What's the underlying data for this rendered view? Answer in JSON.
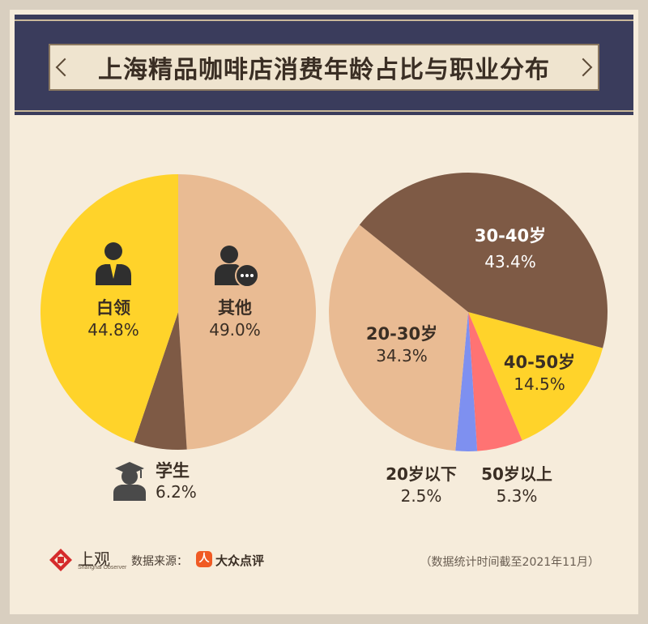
{
  "title": "上海精品咖啡店消费年龄占比与职业分布",
  "footer": {
    "brand": "上观",
    "brand_sub": "Shanghai Observer",
    "source_label": "数据来源：",
    "source_name": "大众点评",
    "source_icon": "人",
    "note": "（数据统计时间截至2021年11月）"
  },
  "colors": {
    "yellow": "#ffd32a",
    "peach": "#e9bb93",
    "brown": "#7e5a45",
    "blue": "#7e90f0",
    "pink": "#ff7373",
    "banner": "#3a3c5c"
  },
  "chart_data": [
    {
      "type": "pie",
      "name": "职业分布",
      "slices": [
        {
          "label": "其他",
          "value": 49.0,
          "value_label": "49.0%",
          "color": "#e9bb93",
          "icon": "person-chat-icon"
        },
        {
          "label": "学生",
          "value": 6.2,
          "value_label": "6.2%",
          "color": "#7e5a45",
          "icon": "graduate-icon"
        },
        {
          "label": "白领",
          "value": 44.8,
          "value_label": "44.8%",
          "color": "#ffd32a",
          "icon": "office-worker-icon"
        }
      ]
    },
    {
      "type": "pie",
      "name": "年龄占比",
      "slices": [
        {
          "label": "40-50岁",
          "value": 14.5,
          "value_label": "14.5%",
          "color": "#ffd32a"
        },
        {
          "label": "50岁以上",
          "value": 5.3,
          "value_label": "5.3%",
          "color": "#ff7373"
        },
        {
          "label": "20岁以下",
          "value": 2.5,
          "value_label": "2.5%",
          "color": "#7e90f0"
        },
        {
          "label": "20-30岁",
          "value": 34.3,
          "value_label": "34.3%",
          "color": "#e9bb93"
        },
        {
          "label": "30-40岁",
          "value": 43.4,
          "value_label": "43.4%",
          "color": "#7e5a45"
        }
      ]
    }
  ]
}
